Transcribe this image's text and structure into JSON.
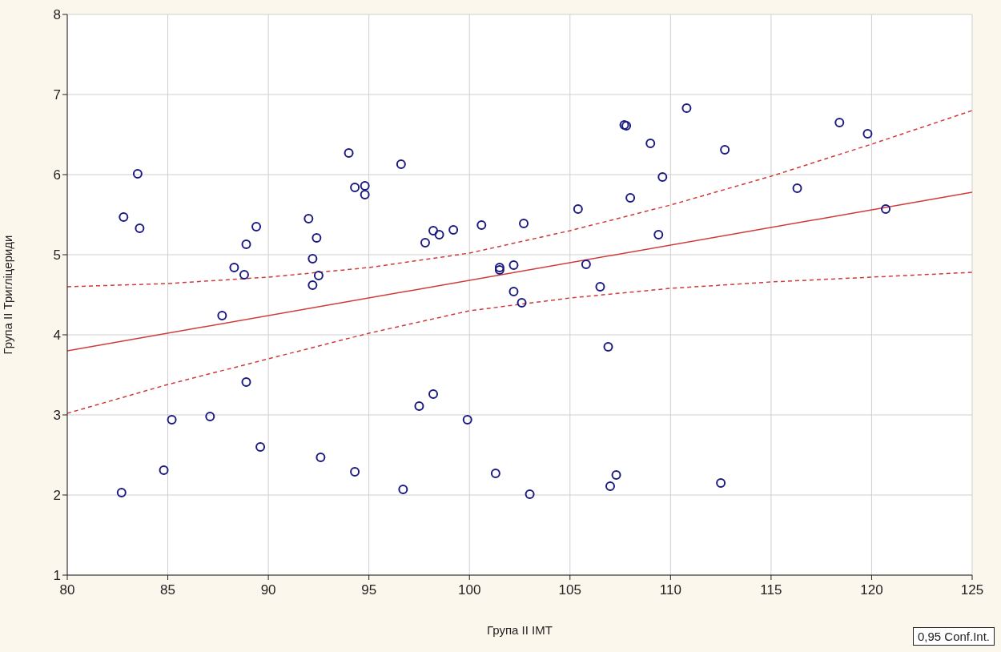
{
  "chart_data": {
    "type": "scatter",
    "xlabel": "Група II IMT",
    "ylabel": "Група II Тригліцериди",
    "xlim": [
      80,
      125
    ],
    "xticks": [
      80,
      85,
      90,
      95,
      100,
      105,
      110,
      115,
      120,
      125
    ],
    "ylim": [
      1,
      8
    ],
    "yticks": [
      1,
      2,
      3,
      4,
      5,
      6,
      7,
      8
    ],
    "grid": true,
    "annotations": [
      "0,95 Conf.Int."
    ],
    "series": [
      {
        "color": "#1a1a80",
        "marker": "circle",
        "x": [
          82.7,
          82.8,
          83.5,
          83.6,
          84.8,
          85.2,
          87.1,
          87.7,
          88.3,
          88.8,
          88.9,
          88.9,
          89.4,
          89.6,
          92.0,
          92.2,
          92.2,
          92.4,
          92.5,
          92.6,
          94.0,
          94.3,
          94.3,
          94.8,
          94.8,
          96.6,
          96.7,
          97.5,
          97.8,
          98.2,
          98.2,
          98.5,
          99.2,
          99.9,
          100.6,
          101.3,
          101.5,
          101.5,
          102.2,
          102.2,
          102.6,
          102.7,
          103.0,
          105.4,
          105.8,
          106.5,
          106.9,
          107.0,
          107.3,
          107.7,
          107.8,
          108.0,
          109.0,
          109.4,
          109.6,
          110.8,
          112.5,
          112.7,
          116.3,
          118.4,
          119.8,
          120.7
        ],
        "values": [
          2.03,
          5.47,
          6.01,
          5.33,
          2.31,
          2.94,
          2.98,
          4.24,
          4.84,
          4.75,
          5.13,
          3.41,
          5.35,
          2.6,
          5.45,
          4.95,
          4.62,
          5.21,
          4.74,
          2.47,
          6.27,
          5.84,
          2.29,
          5.86,
          5.75,
          6.13,
          2.07,
          3.11,
          5.15,
          5.3,
          3.26,
          5.25,
          5.31,
          2.94,
          5.37,
          2.27,
          4.84,
          4.81,
          4.87,
          4.54,
          4.4,
          5.39,
          2.01,
          5.57,
          4.88,
          4.6,
          3.85,
          2.11,
          2.25,
          6.62,
          6.61,
          5.71,
          6.39,
          5.25,
          5.97,
          6.83,
          2.15,
          6.31,
          5.83,
          6.65,
          6.51,
          5.57
        ]
      },
      {
        "type": "line",
        "color": "#d03a3a",
        "line_style": "solid",
        "x": [
          80,
          125
        ],
        "values": [
          3.8,
          5.78
        ]
      },
      {
        "type": "line",
        "color": "#d03a3a",
        "line_style": "dashed",
        "x": [
          80,
          85,
          90,
          95,
          100,
          105,
          110,
          115,
          120,
          125
        ],
        "values": [
          4.6,
          4.64,
          4.72,
          4.84,
          5.02,
          5.3,
          5.62,
          5.98,
          6.38,
          6.8
        ]
      },
      {
        "type": "line",
        "color": "#d03a3a",
        "line_style": "dashed",
        "x": [
          80,
          85,
          90,
          95,
          100,
          105,
          110,
          115,
          120,
          125
        ],
        "values": [
          3.02,
          3.38,
          3.7,
          4.02,
          4.3,
          4.46,
          4.58,
          4.66,
          4.72,
          4.78
        ]
      }
    ]
  }
}
